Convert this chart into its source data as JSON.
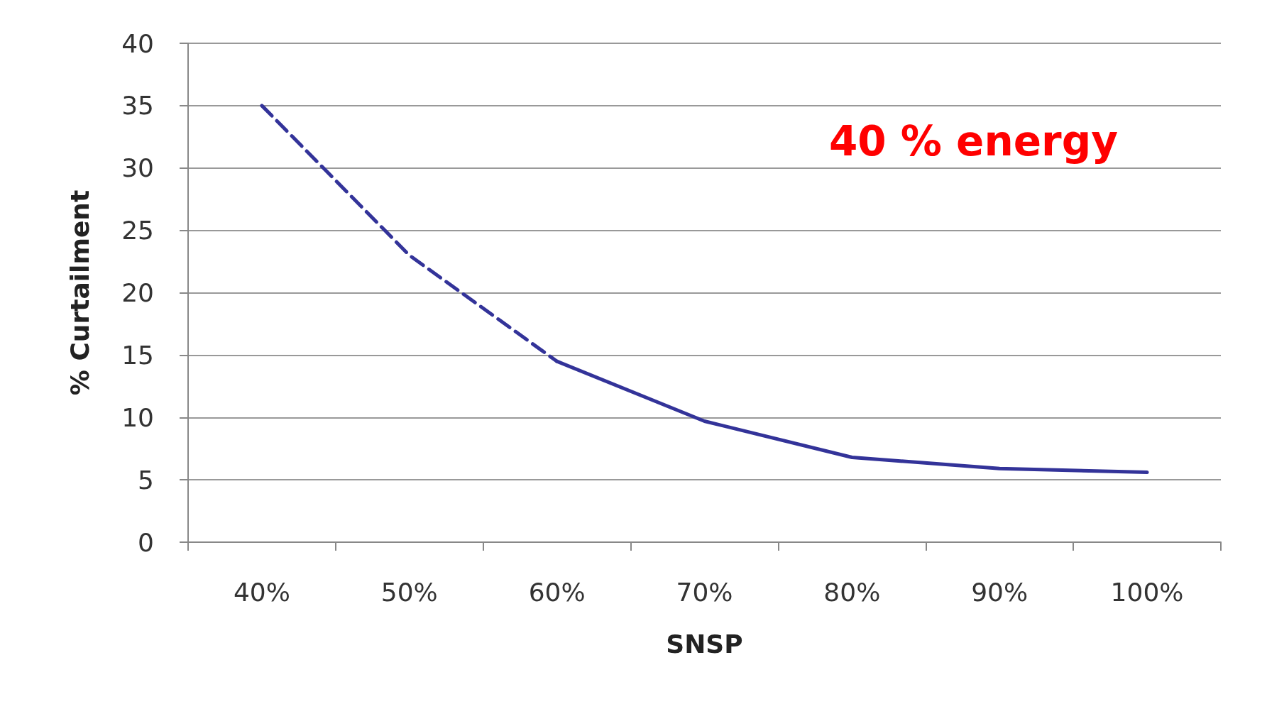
{
  "chart_data": {
    "type": "line",
    "xlabel": "SNSP",
    "ylabel": "% Curtailment",
    "categories": [
      "40%",
      "50%",
      "60%",
      "70%",
      "80%",
      "90%",
      "100%"
    ],
    "series": [
      {
        "color": "#333399",
        "line_style": "dashed",
        "values": [
          35,
          23,
          14.5,
          null,
          null,
          null,
          null
        ]
      },
      {
        "color": "#333399",
        "line_style": "solid",
        "values": [
          null,
          null,
          14.5,
          9.7,
          6.8,
          5.9,
          5.6
        ]
      }
    ],
    "ylim": [
      0,
      40
    ],
    "yticks": [
      0,
      5,
      10,
      15,
      20,
      25,
      30,
      35,
      40
    ],
    "grid": "y",
    "marker": "none",
    "annotations": [
      "40 % energy"
    ]
  }
}
